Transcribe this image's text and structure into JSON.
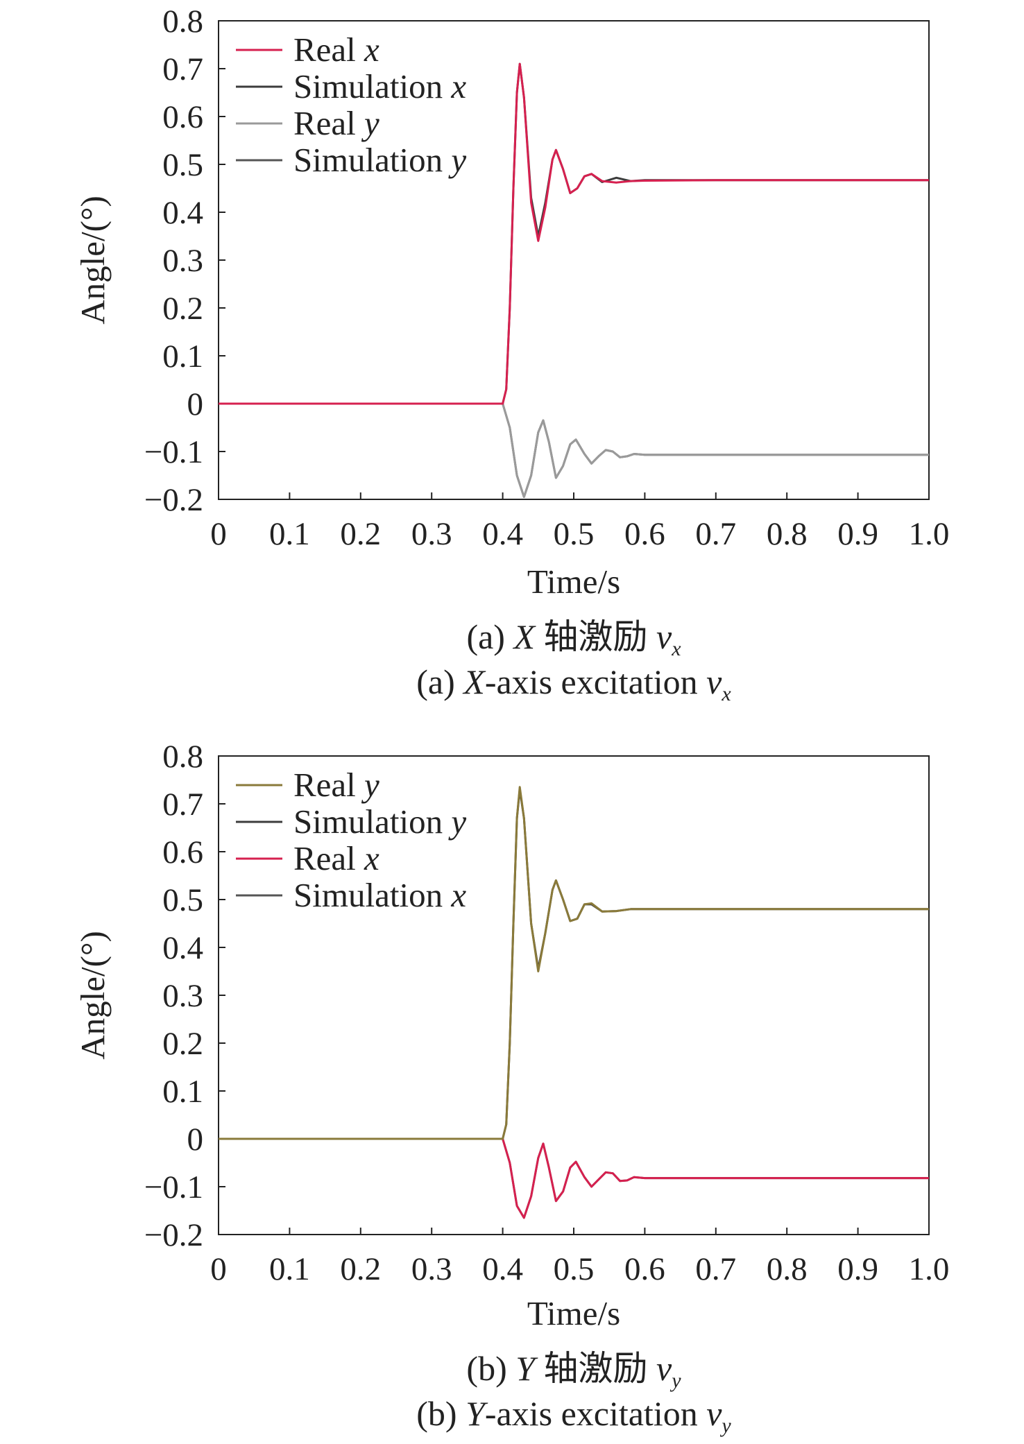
{
  "chart_data": [
    {
      "type": "line",
      "caption_cn": "(a) X 轴激励 vx",
      "caption_en": "(a) X-axis excitation vx",
      "xlabel": "Time/s",
      "ylabel": "Angle/(°)",
      "xlim": [
        0,
        1.0
      ],
      "ylim": [
        -0.2,
        0.8
      ],
      "xticks": [
        "0",
        "0.1",
        "0.2",
        "0.3",
        "0.4",
        "0.5",
        "0.6",
        "0.7",
        "0.8",
        "0.9",
        "1.0"
      ],
      "yticks": [
        "0.8",
        "0.7",
        "0.6",
        "0.5",
        "0.4",
        "0.3",
        "0.2",
        "0.1",
        "0",
        "−0.1",
        "−0.2"
      ],
      "grid": false,
      "legend_position": "top-left",
      "series": [
        {
          "name": "Real x",
          "color": "#d6204f",
          "data": [
            [
              0,
              0
            ],
            [
              0.4,
              0
            ],
            [
              0.405,
              0.03
            ],
            [
              0.41,
              0.2
            ],
            [
              0.415,
              0.45
            ],
            [
              0.42,
              0.65
            ],
            [
              0.424,
              0.71
            ],
            [
              0.43,
              0.64
            ],
            [
              0.44,
              0.42
            ],
            [
              0.45,
              0.34
            ],
            [
              0.46,
              0.41
            ],
            [
              0.47,
              0.51
            ],
            [
              0.475,
              0.53
            ],
            [
              0.485,
              0.49
            ],
            [
              0.495,
              0.44
            ],
            [
              0.505,
              0.45
            ],
            [
              0.515,
              0.475
            ],
            [
              0.525,
              0.48
            ],
            [
              0.54,
              0.465
            ],
            [
              0.56,
              0.462
            ],
            [
              0.58,
              0.465
            ],
            [
              0.6,
              0.466
            ],
            [
              0.7,
              0.467
            ],
            [
              1.0,
              0.467
            ]
          ]
        },
        {
          "name": "Simulation x",
          "color": "#3c3c3c",
          "data": [
            [
              0,
              0
            ],
            [
              0.4,
              0
            ],
            [
              0.405,
              0.03
            ],
            [
              0.41,
              0.2
            ],
            [
              0.415,
              0.45
            ],
            [
              0.42,
              0.65
            ],
            [
              0.424,
              0.71
            ],
            [
              0.43,
              0.64
            ],
            [
              0.44,
              0.43
            ],
            [
              0.45,
              0.35
            ],
            [
              0.46,
              0.42
            ],
            [
              0.47,
              0.51
            ],
            [
              0.475,
              0.53
            ],
            [
              0.485,
              0.49
            ],
            [
              0.495,
              0.44
            ],
            [
              0.505,
              0.45
            ],
            [
              0.515,
              0.475
            ],
            [
              0.525,
              0.48
            ],
            [
              0.54,
              0.463
            ],
            [
              0.56,
              0.472
            ],
            [
              0.58,
              0.465
            ],
            [
              0.6,
              0.467
            ],
            [
              0.7,
              0.467
            ],
            [
              1.0,
              0.467
            ]
          ]
        },
        {
          "name": "Real y",
          "color": "#9a9a9a",
          "data": [
            [
              0,
              0
            ],
            [
              0.4,
              0
            ],
            [
              0.41,
              -0.05
            ],
            [
              0.42,
              -0.15
            ],
            [
              0.43,
              -0.195
            ],
            [
              0.44,
              -0.15
            ],
            [
              0.45,
              -0.06
            ],
            [
              0.457,
              -0.035
            ],
            [
              0.465,
              -0.08
            ],
            [
              0.475,
              -0.155
            ],
            [
              0.485,
              -0.13
            ],
            [
              0.495,
              -0.085
            ],
            [
              0.503,
              -0.075
            ],
            [
              0.515,
              -0.105
            ],
            [
              0.525,
              -0.125
            ],
            [
              0.535,
              -0.11
            ],
            [
              0.545,
              -0.097
            ],
            [
              0.555,
              -0.1
            ],
            [
              0.565,
              -0.112
            ],
            [
              0.575,
              -0.11
            ],
            [
              0.585,
              -0.105
            ],
            [
              0.6,
              -0.107
            ],
            [
              0.7,
              -0.107
            ],
            [
              1.0,
              -0.107
            ]
          ]
        },
        {
          "name": "Simulation y",
          "color": "#555555",
          "data": [
            [
              0,
              0
            ],
            [
              0.4,
              0
            ],
            [
              0.41,
              -0.05
            ],
            [
              0.42,
              -0.15
            ],
            [
              0.43,
              -0.195
            ],
            [
              0.44,
              -0.15
            ],
            [
              0.45,
              -0.06
            ],
            [
              0.457,
              -0.035
            ],
            [
              0.465,
              -0.08
            ],
            [
              0.475,
              -0.155
            ],
            [
              0.485,
              -0.13
            ],
            [
              0.495,
              -0.085
            ],
            [
              0.503,
              -0.075
            ],
            [
              0.515,
              -0.105
            ],
            [
              0.525,
              -0.125
            ],
            [
              0.535,
              -0.11
            ],
            [
              0.545,
              -0.097
            ],
            [
              0.555,
              -0.1
            ],
            [
              0.565,
              -0.112
            ],
            [
              0.575,
              -0.11
            ],
            [
              0.585,
              -0.105
            ],
            [
              0.6,
              -0.107
            ],
            [
              0.7,
              -0.107
            ],
            [
              1.0,
              -0.107
            ]
          ]
        }
      ]
    },
    {
      "type": "line",
      "caption_cn": "(b) Y 轴激励 vy",
      "caption_en": "(b) Y-axis excitation vy",
      "xlabel": "Time/s",
      "ylabel": "Angle/(°)",
      "xlim": [
        0,
        1.0
      ],
      "ylim": [
        -0.2,
        0.8
      ],
      "xticks": [
        "0",
        "0.1",
        "0.2",
        "0.3",
        "0.4",
        "0.5",
        "0.6",
        "0.7",
        "0.8",
        "0.9",
        "1.0"
      ],
      "yticks": [
        "0.8",
        "0.7",
        "0.6",
        "0.5",
        "0.4",
        "0.3",
        "0.2",
        "0.1",
        "0",
        "−0.1",
        "−0.2"
      ],
      "grid": false,
      "legend_position": "top-left",
      "series": [
        {
          "name": "Real y",
          "color": "#8a7a3a",
          "data": [
            [
              0,
              0
            ],
            [
              0.4,
              0
            ],
            [
              0.405,
              0.03
            ],
            [
              0.41,
              0.2
            ],
            [
              0.415,
              0.45
            ],
            [
              0.42,
              0.67
            ],
            [
              0.424,
              0.735
            ],
            [
              0.43,
              0.67
            ],
            [
              0.44,
              0.45
            ],
            [
              0.45,
              0.35
            ],
            [
              0.46,
              0.43
            ],
            [
              0.47,
              0.52
            ],
            [
              0.475,
              0.54
            ],
            [
              0.485,
              0.5
            ],
            [
              0.495,
              0.455
            ],
            [
              0.505,
              0.46
            ],
            [
              0.515,
              0.49
            ],
            [
              0.525,
              0.492
            ],
            [
              0.54,
              0.475
            ],
            [
              0.56,
              0.476
            ],
            [
              0.58,
              0.48
            ],
            [
              0.6,
              0.48
            ],
            [
              0.7,
              0.48
            ],
            [
              1.0,
              0.48
            ]
          ]
        },
        {
          "name": "Simulation y",
          "color": "#3c3c3c",
          "data": [
            [
              0,
              0
            ],
            [
              0.4,
              0
            ],
            [
              0.405,
              0.03
            ],
            [
              0.41,
              0.2
            ],
            [
              0.415,
              0.45
            ],
            [
              0.42,
              0.67
            ],
            [
              0.424,
              0.73
            ],
            [
              0.43,
              0.67
            ],
            [
              0.44,
              0.45
            ],
            [
              0.45,
              0.355
            ],
            [
              0.46,
              0.43
            ],
            [
              0.47,
              0.52
            ],
            [
              0.475,
              0.54
            ],
            [
              0.485,
              0.5
            ],
            [
              0.495,
              0.455
            ],
            [
              0.505,
              0.46
            ],
            [
              0.515,
              0.49
            ],
            [
              0.525,
              0.49
            ],
            [
              0.54,
              0.475
            ],
            [
              0.56,
              0.476
            ],
            [
              0.58,
              0.48
            ],
            [
              0.6,
              0.48
            ],
            [
              0.7,
              0.48
            ],
            [
              1.0,
              0.48
            ]
          ]
        },
        {
          "name": "Real x",
          "color": "#d6204f",
          "data": [
            [
              0,
              0
            ],
            [
              0.4,
              0
            ],
            [
              0.41,
              -0.05
            ],
            [
              0.42,
              -0.14
            ],
            [
              0.43,
              -0.165
            ],
            [
              0.44,
              -0.12
            ],
            [
              0.45,
              -0.04
            ],
            [
              0.457,
              -0.01
            ],
            [
              0.465,
              -0.06
            ],
            [
              0.475,
              -0.13
            ],
            [
              0.485,
              -0.11
            ],
            [
              0.495,
              -0.06
            ],
            [
              0.503,
              -0.048
            ],
            [
              0.515,
              -0.08
            ],
            [
              0.525,
              -0.1
            ],
            [
              0.535,
              -0.085
            ],
            [
              0.545,
              -0.07
            ],
            [
              0.555,
              -0.072
            ],
            [
              0.565,
              -0.088
            ],
            [
              0.575,
              -0.087
            ],
            [
              0.585,
              -0.08
            ],
            [
              0.6,
              -0.082
            ],
            [
              0.7,
              -0.082
            ],
            [
              1.0,
              -0.082
            ]
          ]
        },
        {
          "name": "Simulation x",
          "color": "#555555",
          "data": [
            [
              0,
              0
            ],
            [
              0.4,
              0
            ],
            [
              0.41,
              -0.05
            ],
            [
              0.42,
              -0.14
            ],
            [
              0.43,
              -0.165
            ],
            [
              0.44,
              -0.12
            ],
            [
              0.45,
              -0.04
            ],
            [
              0.457,
              -0.01
            ],
            [
              0.465,
              -0.06
            ],
            [
              0.475,
              -0.13
            ],
            [
              0.485,
              -0.11
            ],
            [
              0.495,
              -0.06
            ],
            [
              0.503,
              -0.048
            ],
            [
              0.515,
              -0.08
            ],
            [
              0.525,
              -0.1
            ],
            [
              0.535,
              -0.085
            ],
            [
              0.545,
              -0.07
            ],
            [
              0.555,
              -0.072
            ],
            [
              0.565,
              -0.088
            ],
            [
              0.575,
              -0.087
            ],
            [
              0.585,
              -0.08
            ],
            [
              0.6,
              -0.082
            ],
            [
              0.7,
              -0.082
            ],
            [
              1.0,
              -0.082
            ]
          ]
        }
      ]
    }
  ]
}
